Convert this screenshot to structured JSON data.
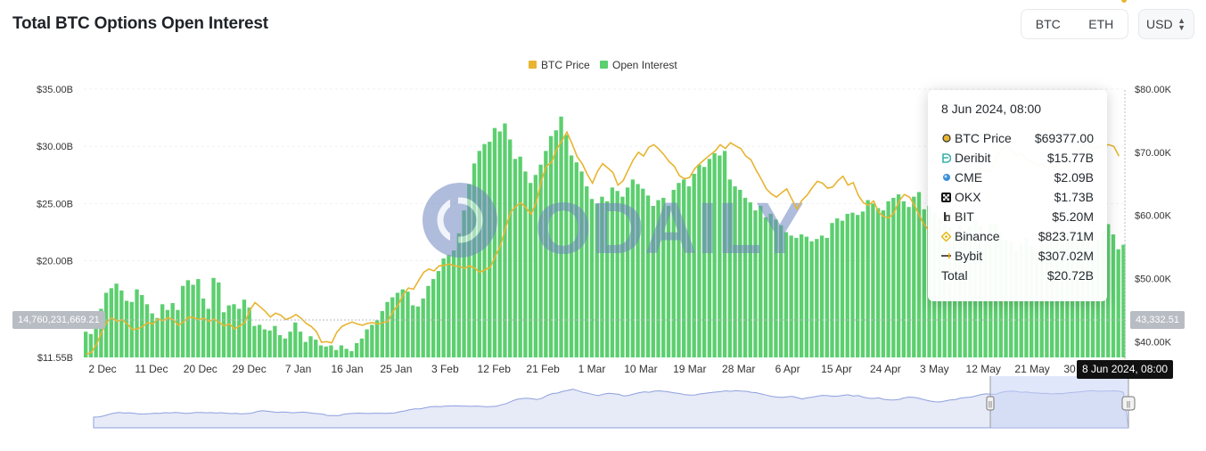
{
  "title": "Total BTC Options Open Interest",
  "asset_toggle": {
    "options": [
      "BTC",
      "ETH"
    ],
    "selected": "BTC"
  },
  "currency_select": {
    "value": "USD"
  },
  "legend": [
    {
      "label": "BTC Price",
      "color": "#e8b431"
    },
    {
      "label": "Open Interest",
      "color": "#5ccf6f"
    }
  ],
  "watermark": "ODAILY",
  "crosshair": {
    "left_value": "14,760,231,669.21",
    "right_value": "43,332.51",
    "date_label": "8 Jun 2024, 08:00"
  },
  "tooltip": {
    "date": "8 Jun 2024, 08:00",
    "rows": [
      {
        "name": "BTC Price",
        "value": "$69377.00",
        "icon": "btc-price-dot-icon"
      },
      {
        "name": "Deribit",
        "value": "$15.77B",
        "icon": "deribit-logo-icon"
      },
      {
        "name": "CME",
        "value": "$2.09B",
        "icon": "cme-logo-icon"
      },
      {
        "name": "OKX",
        "value": "$1.73B",
        "icon": "okx-logo-icon"
      },
      {
        "name": "BIT",
        "value": "$5.20M",
        "icon": "bit-logo-icon"
      },
      {
        "name": "Binance",
        "value": "$823.71M",
        "icon": "binance-logo-icon"
      },
      {
        "name": "Bybit",
        "value": "$307.02M",
        "icon": "bybit-logo-icon"
      },
      {
        "name": "Total",
        "value": "$20.72B",
        "icon": ""
      }
    ]
  },
  "chart_data": {
    "type": "bar",
    "x_tick_labels": [
      "2 Dec",
      "11 Dec",
      "20 Dec",
      "29 Dec",
      "7 Jan",
      "16 Jan",
      "25 Jan",
      "3 Feb",
      "12 Feb",
      "21 Feb",
      "1 Mar",
      "10 Mar",
      "19 Mar",
      "28 Mar",
      "6 Apr",
      "15 Apr",
      "24 Apr",
      "3 May",
      "12 May",
      "21 May",
      "30 May"
    ],
    "y_left": {
      "ticks": [
        "$35.00B",
        "$30.00B",
        "$25.00B",
        "$20.00B",
        "$11.55B"
      ],
      "range": [
        11.55,
        35
      ]
    },
    "y_right": {
      "ticks": [
        "$80.00K",
        "$70.00K",
        "$60.00K",
        "$50.00K",
        "$40.00K"
      ],
      "range": [
        37.5,
        80
      ]
    },
    "grid": true,
    "legend_position": "top-center",
    "series": [
      {
        "name": "Open Interest",
        "axis": "left",
        "unit": "B USD",
        "values": [
          13.8,
          13.6,
          14.2,
          15.8,
          17.2,
          17.6,
          18.0,
          17.4,
          16.5,
          16.4,
          17.5,
          17.0,
          16.2,
          15.4,
          15.0,
          16.2,
          15.7,
          16.3,
          15.7,
          17.8,
          18.3,
          17.9,
          18.4,
          16.7,
          15.8,
          18.5,
          18.1,
          15.5,
          16.1,
          16.2,
          15.8,
          16.6,
          15.9,
          14.3,
          14.4,
          14.0,
          13.9,
          14.3,
          13.5,
          13.2,
          13.8,
          14.6,
          13.8,
          12.9,
          13.4,
          13.1,
          12.6,
          12.5,
          12.6,
          12.2,
          12.6,
          12.3,
          12.1,
          12.8,
          13.2,
          14.0,
          14.4,
          14.8,
          15.6,
          16.4,
          16.8,
          17.2,
          17.5,
          17.3,
          16.1,
          16.0,
          16.7,
          17.8,
          18.4,
          19.1,
          20.2,
          20.5,
          20.9,
          22.4,
          24.4,
          26.7,
          28.5,
          29.6,
          30.2,
          30.4,
          31.6,
          31.3,
          32.0,
          30.6,
          28.9,
          29.1,
          27.8,
          26.8,
          27.5,
          28.4,
          29.6,
          30.9,
          31.4,
          32.6,
          31.0,
          29.2,
          28.6,
          27.8,
          26.5,
          25.4,
          25.0,
          25.6,
          25.2,
          26.4,
          26.1,
          25.6,
          26.4,
          27.1,
          26.7,
          26.3,
          25.7,
          24.8,
          25.3,
          25.5,
          24.8,
          26.2,
          26.8,
          27.1,
          26.5,
          27.6,
          28.4,
          28.2,
          28.9,
          29.4,
          29.2,
          29.6,
          27.1,
          26.5,
          26.2,
          25.5,
          25.1,
          24.4,
          24.8,
          23.8,
          24.1,
          23.6,
          23.1,
          22.5,
          22.2,
          22.0,
          22.3,
          22.1,
          21.7,
          21.9,
          22.2,
          22.0,
          23.3,
          23.7,
          23.5,
          24.1,
          24.2,
          24.0,
          24.3,
          25.3,
          25.0,
          24.6,
          24.4,
          25.2,
          25.5,
          25.8,
          25.2,
          24.7,
          25.6,
          26.0,
          24.5,
          24.8,
          24.2,
          23.7,
          23.2,
          22.9,
          22.4,
          23.1,
          22.6,
          23.1,
          23.5,
          23.0,
          22.0,
          23.3,
          23.2,
          22.4,
          21.8,
          21.6,
          20.9,
          21.5,
          22.0,
          21.3,
          20.8,
          21.5,
          21.8,
          22.1,
          22.5,
          22.7,
          22.4,
          22.8,
          22.6,
          22.5,
          22.4,
          21.2,
          21.8,
          22.6,
          23.2,
          22.3,
          21.0,
          21.4
        ]
      },
      {
        "name": "BTC Price",
        "axis": "right",
        "unit": "K USD",
        "values": [
          38.0,
          38.3,
          39.6,
          41.5,
          43.1,
          43.8,
          43.2,
          43.5,
          42.8,
          41.9,
          42.0,
          42.4,
          43.0,
          42.8,
          43.6,
          43.3,
          43.8,
          43.5,
          42.6,
          43.1,
          43.9,
          43.8,
          43.5,
          43.7,
          43.2,
          43.6,
          43.0,
          42.5,
          42.8,
          42.0,
          42.5,
          43.0,
          45.0,
          46.2,
          45.5,
          44.8,
          43.9,
          44.5,
          44.2,
          43.5,
          43.8,
          44.3,
          43.7,
          42.9,
          42.4,
          41.6,
          39.9,
          40.0,
          39.8,
          41.5,
          42.4,
          42.8,
          43.1,
          42.8,
          42.6,
          42.9,
          43.0,
          42.8,
          43.0,
          43.2,
          44.8,
          45.8,
          47.5,
          48.5,
          48.3,
          49.7,
          51.0,
          51.5,
          51.2,
          52.0,
          52.1,
          52.3,
          52.0,
          51.9,
          51.6,
          52.0,
          51.6,
          51.0,
          51.4,
          51.8,
          53.5,
          55.2,
          58.0,
          60.5,
          61.4,
          62.0,
          61.2,
          60.2,
          62.0,
          65.5,
          67.8,
          68.4,
          70.5,
          71.8,
          73.2,
          71.4,
          69.3,
          68.2,
          66.5,
          65.1,
          67.0,
          68.2,
          67.5,
          66.8,
          64.8,
          65.5,
          67.2,
          68.8,
          70.0,
          69.4,
          70.8,
          71.2,
          70.5,
          69.6,
          68.5,
          67.8,
          66.3,
          65.8,
          66.0,
          67.4,
          68.2,
          68.9,
          69.6,
          70.2,
          71.2,
          70.6,
          71.5,
          71.0,
          70.6,
          69.4,
          68.8,
          67.2,
          65.8,
          64.2,
          63.4,
          62.9,
          63.6,
          64.2,
          62.6,
          61.0,
          62.4,
          63.2,
          64.4,
          65.4,
          65.1,
          64.3,
          64.5,
          65.5,
          66.2,
          64.8,
          65.2,
          63.2,
          62.0,
          61.6,
          62.3,
          60.5,
          59.8,
          59.6,
          60.4,
          62.3,
          63.3,
          62.9,
          61.6,
          59.9,
          58.4,
          57.5,
          57.1,
          58.4,
          59.6,
          60.1,
          61.8,
          62.8,
          63.2,
          64.5,
          66.3,
          67.4,
          67.0,
          66.8,
          69.3,
          70.4,
          71.0,
          70.3,
          69.4,
          69.8,
          68.8,
          68.5,
          67.9,
          68.2,
          67.3,
          67.8,
          67.7,
          68.5,
          69.0,
          69.6,
          70.2,
          71.1,
          71.4,
          70.6,
          70.8,
          71.0,
          71.2,
          70.9,
          69.4
        ]
      }
    ]
  },
  "navigator": {
    "handle_glyph": "||"
  }
}
